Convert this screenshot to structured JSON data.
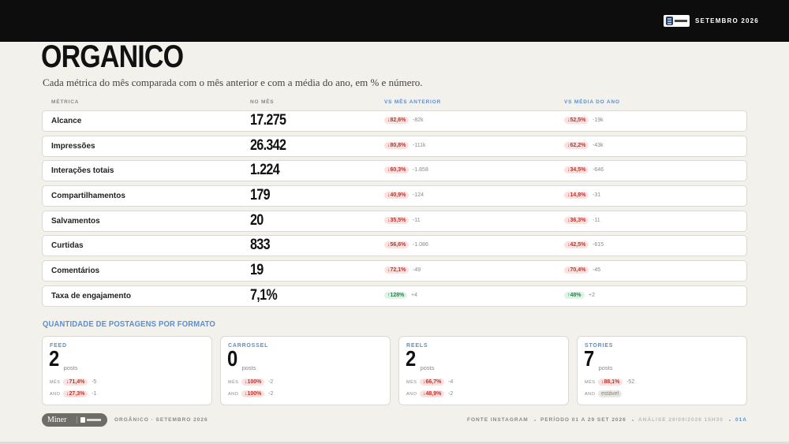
{
  "header": {
    "period": "SETEMBRO 2026"
  },
  "title": "ORGANICO",
  "subtitle": "Cada métrica do mês comparada com o mês anterior e com a média do ano, em % e número.",
  "table": {
    "columns": [
      "MÉTRICA",
      "NO MÊS",
      "VS MÊS ANTERIOR",
      "VS MÉDIA DO ANO"
    ],
    "rows": [
      {
        "metric": "Alcance",
        "value": "17.275",
        "prev": {
          "label": "↓82,6%",
          "tone": "down",
          "delta": "-82k"
        },
        "avg": {
          "label": "↓52,5%",
          "tone": "down",
          "delta": "-19k"
        }
      },
      {
        "metric": "Impressões",
        "value": "26.342",
        "prev": {
          "label": "↓80,8%",
          "tone": "down",
          "delta": "-111k"
        },
        "avg": {
          "label": "↓62,2%",
          "tone": "down",
          "delta": "-43k"
        }
      },
      {
        "metric": "Interações totais",
        "value": "1.224",
        "prev": {
          "label": "↓60,3%",
          "tone": "down",
          "delta": "-1.858"
        },
        "avg": {
          "label": "↓34,5%",
          "tone": "down",
          "delta": "-646"
        }
      },
      {
        "metric": "Compartilhamentos",
        "value": "179",
        "prev": {
          "label": "↓40,9%",
          "tone": "down",
          "delta": "-124"
        },
        "avg": {
          "label": "↓14,8%",
          "tone": "down",
          "delta": "-31"
        }
      },
      {
        "metric": "Salvamentos",
        "value": "20",
        "prev": {
          "label": "↓35,5%",
          "tone": "down",
          "delta": "-11"
        },
        "avg": {
          "label": "↓36,3%",
          "tone": "down",
          "delta": "-11"
        }
      },
      {
        "metric": "Curtidas",
        "value": "833",
        "prev": {
          "label": "↓56,6%",
          "tone": "down",
          "delta": "-1.086"
        },
        "avg": {
          "label": "↓42,5%",
          "tone": "down",
          "delta": "-615"
        }
      },
      {
        "metric": "Comentários",
        "value": "19",
        "prev": {
          "label": "↓72,1%",
          "tone": "down",
          "delta": "-49"
        },
        "avg": {
          "label": "↓70,4%",
          "tone": "down",
          "delta": "-45"
        }
      },
      {
        "metric": "Taxa de engajamento",
        "value": "7,1%",
        "prev": {
          "label": "↑128%",
          "tone": "up",
          "delta": "+4"
        },
        "avg": {
          "label": "↑48%",
          "tone": "up",
          "delta": "+2"
        }
      }
    ]
  },
  "formats": {
    "title": "QUANTIDADE DE POSTAGENS POR FORMATO",
    "cards": [
      {
        "name": "FEED",
        "count": "2",
        "unit": "posts",
        "rows": [
          {
            "label": "MÊS",
            "badge": "↓71,4%",
            "tone": "down",
            "delta": "-5"
          },
          {
            "label": "ANO",
            "badge": "↓27,3%",
            "tone": "down",
            "delta": "-1"
          }
        ]
      },
      {
        "name": "CARROSSEL",
        "count": "0",
        "unit": "posts",
        "rows": [
          {
            "label": "MÊS",
            "badge": "↓100%",
            "tone": "down",
            "delta": "-2"
          },
          {
            "label": "ANO",
            "badge": "↓100%",
            "tone": "down",
            "delta": "-2"
          }
        ]
      },
      {
        "name": "REELS",
        "count": "2",
        "unit": "posts",
        "rows": [
          {
            "label": "MÊS",
            "badge": "↓66,7%",
            "tone": "down",
            "delta": "-4"
          },
          {
            "label": "ANO",
            "badge": "↓48,9%",
            "tone": "down",
            "delta": "-2"
          }
        ]
      },
      {
        "name": "STORIES",
        "count": "7",
        "unit": "posts",
        "rows": [
          {
            "label": "MÊS",
            "badge": "↓88,1%",
            "tone": "down",
            "delta": "-52"
          },
          {
            "label": "ANO",
            "badge": "estável",
            "tone": "flat"
          }
        ]
      }
    ]
  },
  "footer": {
    "brand": "Miner",
    "section": "ORGÂNICO · SETEMBRO 2026",
    "meta": [
      "FONTE INSTAGRAM",
      "PERÍODO 01 A 29 SET 2026",
      "ANÁLISE 29/09/2026 15H30",
      "01A"
    ]
  }
}
